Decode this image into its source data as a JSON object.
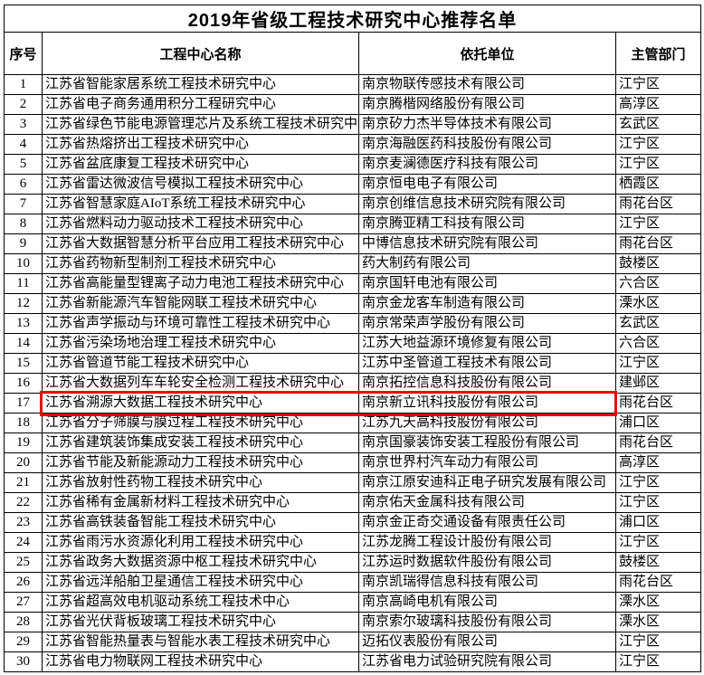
{
  "title": "2019年省级工程技术研究中心推荐名单",
  "table": {
    "columns": [
      {
        "key": "no",
        "label": "序号"
      },
      {
        "key": "name",
        "label": "工程中心名称"
      },
      {
        "key": "unit",
        "label": "依托单位"
      },
      {
        "key": "dept",
        "label": "主管部门"
      }
    ],
    "rows": [
      [
        "1",
        "江苏省智能家居系统工程技术研究中心",
        "南京物联传感技术有限公司",
        "江宁区"
      ],
      [
        "2",
        "江苏省电子商务通用积分工程研究中心",
        "南京腾楷网络股份有限公司",
        "高淳区"
      ],
      [
        "3",
        "江苏省绿色节能电源管理芯片及系统工程技术研究中心",
        "南京矽力杰半导体技术有限公司",
        "玄武区"
      ],
      [
        "4",
        "江苏省热熔挤出工程技术研究中心",
        "南京海融医药科技股份有限公司",
        "江宁区"
      ],
      [
        "5",
        "江苏省盆底康复工程技术研究中心",
        "南京麦澜德医疗科技有限公司",
        "江宁区"
      ],
      [
        "6",
        "江苏省雷达微波信号模拟工程技术研究中心",
        "南京恒电电子有限公司",
        "栖霞区"
      ],
      [
        "7",
        "江苏省智慧家庭AIoT系统工程技术研究中心",
        "南京创维信息技术研究院有限公司",
        "雨花台区"
      ],
      [
        "8",
        "江苏省燃料动力驱动技术工程技术研究中心",
        "南京腾亚精工科技有限公司",
        "江宁区"
      ],
      [
        "9",
        "江苏省大数据智慧分析平台应用工程技术研究中心",
        "中博信息技术研究院有限公司",
        "雨花台区"
      ],
      [
        "10",
        "江苏省药物新型制剂工程技术研究中心",
        "药大制药有限公司",
        "鼓楼区"
      ],
      [
        "11",
        "江苏省高能量型锂离子动力电池工程技术研究中心",
        "南京国轩电池有限公司",
        "六合区"
      ],
      [
        "12",
        "江苏省新能源汽车智能网联工程技术研究中心",
        "南京金龙客车制造有限公司",
        "溧水区"
      ],
      [
        "13",
        "江苏省声学振动与环境可靠性工程技术研究中心",
        "南京常荣声学股份有限公司",
        "玄武区"
      ],
      [
        "14",
        "江苏省污染场地治理工程技术研究中心",
        "江苏大地益源环境修复有限公司",
        "六合区"
      ],
      [
        "15",
        "江苏省管道节能工程技术研究中心",
        "江苏中圣管道工程技术有限公司",
        "江宁区"
      ],
      [
        "16",
        "江苏省大数据列车车轮安全检测工程技术研究中心",
        "南京拓控信息科技股份有限公司",
        "建邺区"
      ],
      [
        "17",
        "江苏省溯源大数据工程技术研究中心",
        "南京新立讯科技股份有限公司",
        "雨花台区"
      ],
      [
        "18",
        "江苏省分子筛膜与膜过程工程技术研究中心",
        "江苏九天高科技股份有限公司",
        "浦口区"
      ],
      [
        "19",
        "江苏省建筑装饰集成安装工程技术研究中心",
        "南京国豪装饰安装工程股份有限公司",
        "雨花台区"
      ],
      [
        "20",
        "江苏省节能及新能源动力工程技术研究中心",
        "南京世界村汽车动力有限公司",
        "高淳区"
      ],
      [
        "21",
        "江苏省放射性药物工程技术研究中心",
        "南京江原安迪科正电子研究发展有限公司",
        "江宁区"
      ],
      [
        "22",
        "江苏省稀有金属新材料工程技术研究中心",
        "南京佑天金属科技有限公司",
        "江宁区"
      ],
      [
        "23",
        "江苏省高铁装备智能工程技术研究中心",
        "南京金正奇交通设备有限责任公司",
        "浦口区"
      ],
      [
        "24",
        "江苏省雨污水资源化利用工程技术研究中心",
        "江苏龙腾工程设计股份有限公司",
        "江宁区"
      ],
      [
        "25",
        "江苏省政务大数据资源中枢工程技术研究中心",
        "江苏运时数据软件股份有限公司",
        "鼓楼区"
      ],
      [
        "26",
        "江苏省远洋船舶卫星通信工程技术研究中心",
        "南京凯瑞得信息科技有限公司",
        "雨花台区"
      ],
      [
        "27",
        "江苏省超高效电机驱动系统工程技术中心",
        "南京高崎电机有限公司",
        "溧水区"
      ],
      [
        "28",
        "江苏省光伏背板玻璃工程技术研究中心",
        "南京索尔玻璃科技股份有限公司",
        "溧水区"
      ],
      [
        "29",
        "江苏省智能热量表与智能水表工程技术研究中心",
        "迈拓仪表股份有限公司",
        "江宁区"
      ],
      [
        "30",
        "江苏省电力物联网工程技术研究中心",
        "江苏省电力试验研究院有限公司",
        "江宁区"
      ]
    ]
  },
  "highlight": {
    "row_no": "17",
    "border_color": "#e60000"
  }
}
